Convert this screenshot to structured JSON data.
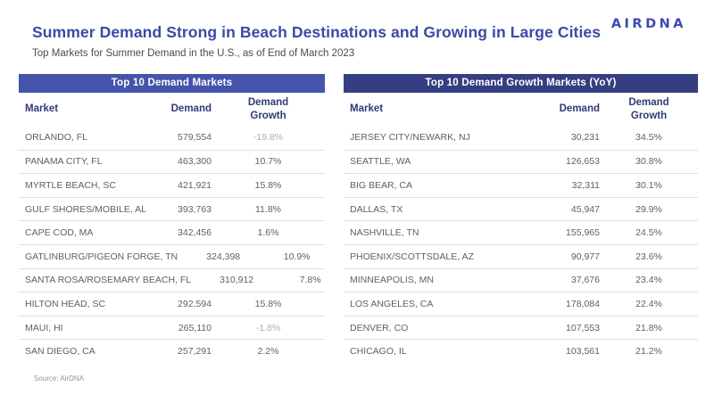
{
  "page": {
    "title": "Summer Demand Strong in Beach Destinations and Growing in Large Cities",
    "subtitle": "Top Markets for Summer Demand in the U.S., as of End of March 2023",
    "logo_text": "AIRDNA",
    "source": "Source: AirDNA"
  },
  "colors": {
    "title_blue": "#3B4AA5",
    "left_band_bg": "#4553AB",
    "right_band_bg": "#343E80",
    "column_header_text": "#2F3B78",
    "row_text": "#59626D",
    "negative_growth_text": "#A7AEB7",
    "row_divider": "#DCE0E5",
    "logo_indigo": "#3E49B2"
  },
  "chart_data": [
    {
      "type": "table",
      "title": "Top 10 Demand Markets",
      "header_bg": "#4553AB",
      "columns": [
        "Market",
        "Demand",
        "Demand\nGrowth"
      ],
      "rows": [
        [
          "ORLANDO, FL",
          "579,554",
          "-19.8%"
        ],
        [
          "PANAMA CITY, FL",
          "463,300",
          "10.7%"
        ],
        [
          "MYRTLE BEACH, SC",
          "421,921",
          "15.8%"
        ],
        [
          "GULF SHORES/MOBILE, AL",
          "393,763",
          "11.8%"
        ],
        [
          "CAPE COD, MA",
          "342,456",
          "1.6%"
        ],
        [
          "GATLINBURG/PIGEON FORGE, TN",
          "324,398",
          "10.9%"
        ],
        [
          "SANTA ROSA/ROSEMARY BEACH, FL",
          "310,912",
          "7.8%"
        ],
        [
          "HILTON HEAD, SC",
          "292,594",
          "15.8%"
        ],
        [
          "MAUI, HI",
          "265,110",
          "-1.8%"
        ],
        [
          "SAN DIEGO, CA",
          "257,291",
          "2.2%"
        ]
      ]
    },
    {
      "type": "table",
      "title": "Top 10 Demand Growth Markets (YoY)",
      "header_bg": "#343E80",
      "columns": [
        "Market",
        "Demand",
        "Demand\nGrowth"
      ],
      "rows": [
        [
          "JERSEY CITY/NEWARK, NJ",
          "30,231",
          "34.5%"
        ],
        [
          "SEATTLE, WA",
          "126,653",
          "30.8%"
        ],
        [
          "BIG BEAR, CA",
          "32,311",
          "30.1%"
        ],
        [
          "DALLAS, TX",
          "45,947",
          "29.9%"
        ],
        [
          "NASHVILLE, TN",
          "155,965",
          "24.5%"
        ],
        [
          "PHOENIX/SCOTTSDALE, AZ",
          "90,977",
          "23.6%"
        ],
        [
          "MINNEAPOLIS, MN",
          "37,676",
          "23.4%"
        ],
        [
          "LOS ANGELES, CA",
          "178,084",
          "22.4%"
        ],
        [
          "DENVER, CO",
          "107,553",
          "21.8%"
        ],
        [
          "CHICAGO, IL",
          "103,561",
          "21.2%"
        ]
      ]
    }
  ]
}
